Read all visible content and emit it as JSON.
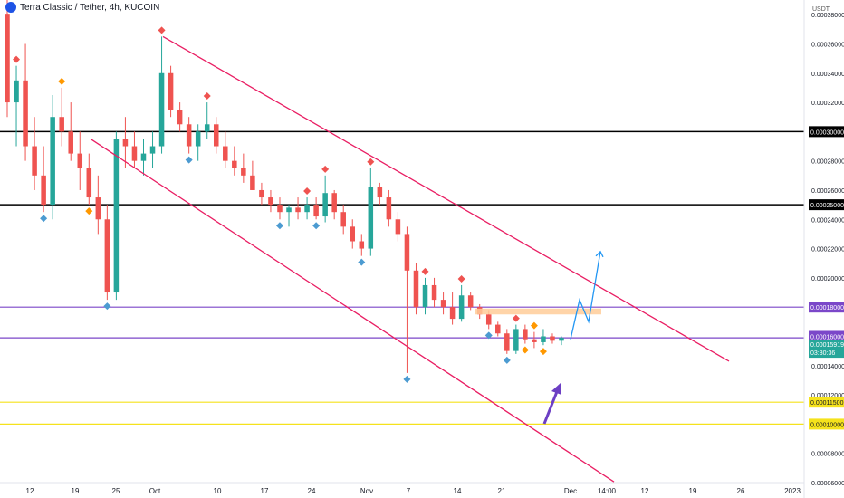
{
  "header": {
    "symbol": "Terra Classic / Tether, 4h, KUCOIN"
  },
  "chart_data": {
    "type": "candlestick",
    "yunit": "USDT",
    "ylim": [
      6e-05,
      0.00039
    ],
    "price_ticks": [
      "0.00038000",
      "0.00036000",
      "0.00034000",
      "0.00032000",
      "0.00030000",
      "0.00028000",
      "0.00026000",
      "0.00024000",
      "0.00022000",
      "0.00020000",
      "0.00018000",
      "0.00016000",
      "0.00014000",
      "0.00012000",
      "0.00010000",
      "0.00008000",
      "0.00006000"
    ],
    "time_ticks": [
      "12",
      "19",
      "25",
      "Oct",
      "10",
      "17",
      "24",
      "Nov",
      "7",
      "14",
      "21",
      "Dec",
      "14:00",
      "12",
      "19",
      "26",
      "2023"
    ],
    "horizontal_levels": [
      {
        "label": "0.00030000",
        "price": 0.0003,
        "color": "#000000",
        "label_bg": "#000000"
      },
      {
        "label": "0.00025000",
        "price": 0.00025,
        "color": "#000000",
        "label_bg": "#000000"
      },
      {
        "label": "0.00018000",
        "price": 0.00018,
        "color": "#7b47c9",
        "label_bg": "#7b47c9"
      },
      {
        "label": "0.00011500",
        "price": 0.000115,
        "color": "#f5e21c",
        "label_bg": "#f5e21c"
      },
      {
        "label": "0.00010000",
        "price": 0.0001,
        "color": "#f5e21c",
        "label_bg": "#f5e21c"
      }
    ],
    "current_price_label": "0.00015919",
    "countdown_label": "03:30:36",
    "mid_level_label": "0.00016000",
    "colors": {
      "up": "#26a69a",
      "down": "#ef5350",
      "channel": "#e91e63",
      "projection": "#2196f3",
      "arrow": "#6c3fc4",
      "zone": "#ffcc99"
    },
    "trend_channel": {
      "upper": [
        [
          "Oct",
          0.000365
        ],
        [
          "2023",
          0.000143
        ]
      ],
      "lower": [
        [
          "19",
          0.000295
        ],
        [
          "26",
          6.05e-05
        ]
      ]
    },
    "candles": [
      [
        0.00038,
        0.00039,
        0.00031,
        0.00032
      ],
      [
        0.00032,
        0.000345,
        0.00029,
        0.000335
      ],
      [
        0.000335,
        0.00036,
        0.00028,
        0.00029
      ],
      [
        0.00029,
        0.00031,
        0.00026,
        0.00027
      ],
      [
        0.00027,
        0.00029,
        0.000245,
        0.00025
      ],
      [
        0.00025,
        0.000325,
        0.00024,
        0.00031
      ],
      [
        0.00031,
        0.00033,
        0.00029,
        0.0003
      ],
      [
        0.0003,
        0.00032,
        0.00028,
        0.000285
      ],
      [
        0.000285,
        0.0003,
        0.00026,
        0.000275
      ],
      [
        0.000275,
        0.000285,
        0.00025,
        0.000255
      ],
      [
        0.000255,
        0.00027,
        0.00023,
        0.00024
      ],
      [
        0.00024,
        0.00025,
        0.000185,
        0.00019
      ],
      [
        0.00019,
        0.0003,
        0.000185,
        0.000295
      ],
      [
        0.000295,
        0.00031,
        0.000275,
        0.00029
      ],
      [
        0.00029,
        0.0003,
        0.000275,
        0.00028
      ],
      [
        0.00028,
        0.000295,
        0.00027,
        0.000285
      ],
      [
        0.000285,
        0.0003,
        0.000275,
        0.00029
      ],
      [
        0.00029,
        0.000365,
        0.000285,
        0.00034
      ],
      [
        0.00034,
        0.000345,
        0.00031,
        0.000315
      ],
      [
        0.000315,
        0.00032,
        0.0003,
        0.000305
      ],
      [
        0.000305,
        0.00031,
        0.000285,
        0.00029
      ],
      [
        0.00029,
        0.000305,
        0.00028,
        0.0003
      ],
      [
        0.0003,
        0.00032,
        0.000295,
        0.000305
      ],
      [
        0.000305,
        0.00031,
        0.000285,
        0.00029
      ],
      [
        0.00029,
        0.0003,
        0.000275,
        0.00028
      ],
      [
        0.00028,
        0.00029,
        0.00027,
        0.000275
      ],
      [
        0.000275,
        0.000285,
        0.000265,
        0.00027
      ],
      [
        0.00027,
        0.00028,
        0.00026,
        0.00026
      ],
      [
        0.00026,
        0.000265,
        0.00025,
        0.000255
      ],
      [
        0.000255,
        0.00026,
        0.000245,
        0.00025
      ],
      [
        0.00025,
        0.000255,
        0.00024,
        0.000245
      ],
      [
        0.000245,
        0.00025,
        0.000235,
        0.000248
      ],
      [
        0.000248,
        0.000255,
        0.00024,
        0.000245
      ],
      [
        0.000245,
        0.000255,
        0.00024,
        0.00025
      ],
      [
        0.00025,
        0.000255,
        0.00024,
        0.000242
      ],
      [
        0.000242,
        0.00027,
        0.000238,
        0.000258
      ],
      [
        0.000258,
        0.00026,
        0.00024,
        0.000245
      ],
      [
        0.000245,
        0.00025,
        0.00023,
        0.000235
      ],
      [
        0.000235,
        0.00024,
        0.00022,
        0.000225
      ],
      [
        0.000225,
        0.00023,
        0.000215,
        0.00022
      ],
      [
        0.00022,
        0.000275,
        0.000215,
        0.000262
      ],
      [
        0.000262,
        0.000265,
        0.00025,
        0.000255
      ],
      [
        0.000255,
        0.00026,
        0.000235,
        0.00024
      ],
      [
        0.00024,
        0.000245,
        0.000225,
        0.00023
      ],
      [
        0.00023,
        0.000235,
        0.000135,
        0.000205
      ],
      [
        0.000205,
        0.00021,
        0.000175,
        0.00018
      ],
      [
        0.00018,
        0.0002,
        0.000175,
        0.000195
      ],
      [
        0.000195,
        0.0002,
        0.00018,
        0.000185
      ],
      [
        0.000185,
        0.00019,
        0.000175,
        0.00018
      ],
      [
        0.00018,
        0.00019,
        0.000168,
        0.000172
      ],
      [
        0.000172,
        0.000195,
        0.00017,
        0.000188
      ],
      [
        0.000188,
        0.00019,
        0.000178,
        0.00018
      ],
      [
        0.00018,
        0.000182,
        0.000172,
        0.000175
      ],
      [
        0.000175,
        0.000178,
        0.000165,
        0.000168
      ],
      [
        0.000168,
        0.00017,
        0.00016,
        0.000162
      ],
      [
        0.000162,
        0.000165,
        0.000148,
        0.00015
      ],
      [
        0.00015,
        0.000168,
        0.000148,
        0.000165
      ],
      [
        0.000165,
        0.000168,
        0.000155,
        0.000158
      ],
      [
        0.000158,
        0.000163,
        0.000152,
        0.000156
      ],
      [
        0.000156,
        0.000165,
        0.000154,
        0.00016
      ],
      [
        0.00016,
        0.000162,
        0.000155,
        0.000157
      ],
      [
        0.000157,
        0.00016,
        0.000154,
        0.000159
      ]
    ],
    "pivot_markers": [
      {
        "kind": "high",
        "color": "#ef5350",
        "candle": 1
      },
      {
        "kind": "low",
        "color": "#4c9bd1",
        "candle": 4
      },
      {
        "kind": "high",
        "color": "#ff9800",
        "candle": 6
      },
      {
        "kind": "low",
        "color": "#ff9800",
        "candle": 9
      },
      {
        "kind": "low",
        "color": "#4c9bd1",
        "candle": 11
      },
      {
        "kind": "high",
        "color": "#ef5350",
        "candle": 17
      },
      {
        "kind": "low",
        "color": "#4c9bd1",
        "candle": 20
      },
      {
        "kind": "high",
        "color": "#ef5350",
        "candle": 22
      },
      {
        "kind": "low",
        "color": "#4c9bd1",
        "candle": 30
      },
      {
        "kind": "high",
        "color": "#ef5350",
        "candle": 33
      },
      {
        "kind": "low",
        "color": "#4c9bd1",
        "candle": 34
      },
      {
        "kind": "high",
        "color": "#ef5350",
        "candle": 35
      },
      {
        "kind": "low",
        "color": "#4c9bd1",
        "candle": 39
      },
      {
        "kind": "high",
        "color": "#ef5350",
        "candle": 40
      },
      {
        "kind": "low",
        "color": "#4c9bd1",
        "candle": 44
      },
      {
        "kind": "high",
        "color": "#ef5350",
        "candle": 46
      },
      {
        "kind": "high",
        "color": "#ef5350",
        "candle": 50
      },
      {
        "kind": "low",
        "color": "#4c9bd1",
        "candle": 53
      },
      {
        "kind": "low",
        "color": "#4c9bd1",
        "candle": 55
      },
      {
        "kind": "high",
        "color": "#ef5350",
        "candle": 56
      },
      {
        "kind": "low",
        "color": "#ff9800",
        "candle": 57
      },
      {
        "kind": "high",
        "color": "#ff9800",
        "candle": 58
      },
      {
        "kind": "low",
        "color": "#ff9800",
        "candle": 59
      }
    ],
    "projection_path": [
      [
        0.000158,
        0
      ],
      [
        0.000185,
        1
      ],
      [
        0.00017,
        2
      ],
      [
        0.000218,
        3
      ]
    ],
    "resistance_zone": [
      0.000179,
      0.000175
    ]
  }
}
